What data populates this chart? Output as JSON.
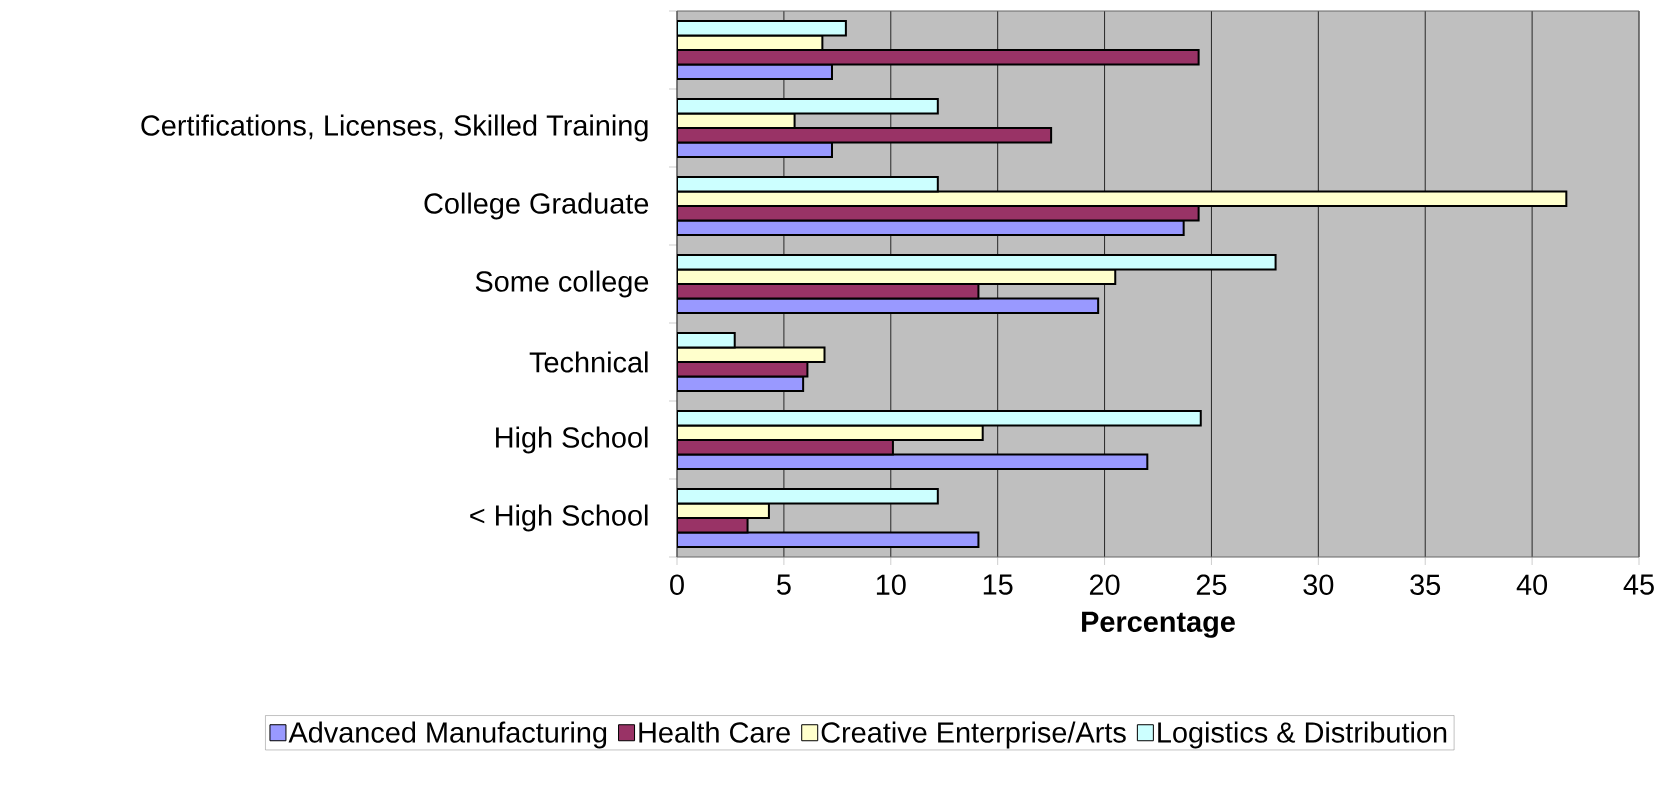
{
  "chart_data": {
    "type": "bar",
    "orientation": "horizontal",
    "xlabel": "Percentage",
    "categories": [
      null,
      "Certifications, Licenses, Skilled Training",
      "College Graduate",
      "Some college",
      "Technical",
      "High School",
      "< High School"
    ],
    "series": [
      {
        "name": "Advanced Manufacturing",
        "color": "#9999ff",
        "values": [
          7.25,
          7.25,
          23.7,
          19.7,
          5.9,
          22.0,
          14.1
        ]
      },
      {
        "name": "Health Care",
        "color": "#993366",
        "values": [
          24.4,
          17.5,
          24.4,
          14.1,
          6.1,
          10.1,
          3.3
        ]
      },
      {
        "name": "Creative Enterprise/Arts",
        "color": "#ffffcc",
        "values": [
          6.8,
          5.5,
          41.6,
          20.5,
          6.9,
          14.3,
          4.3
        ]
      },
      {
        "name": "Logistics & Distribution",
        "color": "#ccffff",
        "values": [
          7.9,
          12.2,
          12.2,
          28.0,
          2.7,
          24.5,
          12.2
        ]
      }
    ],
    "xlim": [
      0,
      45
    ],
    "xticks": [
      0,
      5,
      10,
      15,
      20,
      25,
      30,
      35,
      40,
      45
    ],
    "grid": "x",
    "legend": "bottom"
  }
}
